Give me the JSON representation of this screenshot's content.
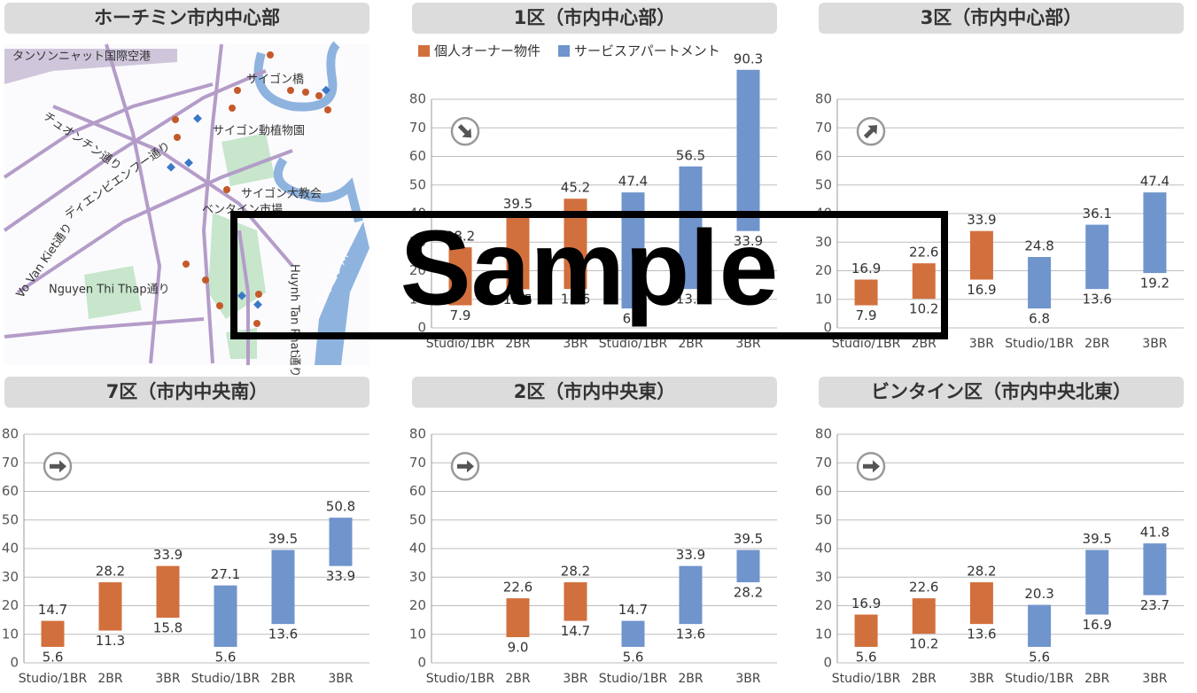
{
  "map": {
    "title": "ホーチミン市内中心部",
    "labels": [
      "タンソンニャット国際空港",
      "サイゴン橋",
      "サイゴン動植物園",
      "チュオンチン通り",
      "ディエンビエンフー通り",
      "Vo Van Kiet通り",
      "サイゴン大教会",
      "ベンタイン市場",
      "Nguyen Thi Thap通り",
      "Huynh Tan Phat通り",
      "サイゴン川"
    ]
  },
  "watermark": "Sample",
  "chart_data": [
    {
      "type": "range-bar",
      "title": "1区（市内中心部）",
      "trend": "down",
      "legend": true,
      "categories": [
        "Studio/1BR",
        "2BR",
        "3BR",
        "Studio/1BR",
        "2BR",
        "3BR"
      ],
      "ylim": [
        0,
        80
      ],
      "yticks": [
        0,
        10,
        20,
        30,
        40,
        50,
        60,
        70,
        80
      ],
      "grid": true,
      "series": [
        {
          "name": "個人オーナー物件",
          "color": "#d2703d",
          "low": [
            7.9,
            13.5,
            13.6,
            null,
            null,
            null
          ],
          "high": [
            28.2,
            39.5,
            45.2,
            null,
            null,
            null
          ],
          "low_labels": [
            "7.9",
            "13.5",
            "13.6",
            null,
            null,
            null
          ],
          "high_labels": [
            "28.2",
            "39.5",
            "45.2",
            null,
            null,
            null
          ]
        },
        {
          "name": "サービスアパートメント",
          "color": "#7094cc",
          "low": [
            null,
            null,
            null,
            6.8,
            13.6,
            33.9
          ],
          "high": [
            null,
            null,
            null,
            47.4,
            56.5,
            90.3
          ],
          "low_labels": [
            null,
            null,
            null,
            "6.8",
            "13.6",
            "33.9"
          ],
          "high_labels": [
            null,
            null,
            null,
            "47.4",
            "56.5",
            "90.3"
          ]
        }
      ]
    },
    {
      "type": "range-bar",
      "title": "3区（市内中心部）",
      "trend": "up",
      "legend": false,
      "categories": [
        "Studio/1BR",
        "2BR",
        "3BR",
        "Studio/1BR",
        "2BR",
        "3BR"
      ],
      "ylim": [
        0,
        80
      ],
      "yticks": [
        0,
        10,
        20,
        30,
        40,
        50,
        60,
        70,
        80
      ],
      "grid": true,
      "series": [
        {
          "color": "#d2703d",
          "low": [
            7.9,
            10.2,
            16.9,
            null,
            null,
            null
          ],
          "high": [
            16.9,
            22.6,
            33.9,
            null,
            null,
            null
          ],
          "low_labels": [
            "7.9",
            "10.2",
            "16.9",
            null,
            null,
            null
          ],
          "high_labels": [
            "16.9",
            "22.6",
            "33.9",
            null,
            null,
            null
          ]
        },
        {
          "color": "#7094cc",
          "low": [
            null,
            null,
            null,
            6.8,
            13.6,
            19.2
          ],
          "high": [
            null,
            null,
            null,
            24.8,
            36.1,
            47.4
          ],
          "low_labels": [
            null,
            null,
            null,
            "6.8",
            "13.6",
            "19.2"
          ],
          "high_labels": [
            null,
            null,
            null,
            "24.8",
            "36.1",
            "47.4"
          ]
        }
      ]
    },
    {
      "type": "range-bar",
      "title": "7区（市内中央南）",
      "trend": "flat",
      "legend": false,
      "categories": [
        "Studio/1BR",
        "2BR",
        "3BR",
        "Studio/1BR",
        "2BR",
        "3BR"
      ],
      "ylim": [
        0,
        80
      ],
      "yticks": [
        0,
        10,
        20,
        30,
        40,
        50,
        60,
        70,
        80
      ],
      "grid": true,
      "series": [
        {
          "color": "#d2703d",
          "low": [
            5.6,
            11.3,
            15.8,
            null,
            null,
            null
          ],
          "high": [
            14.7,
            28.2,
            33.9,
            null,
            null,
            null
          ],
          "low_labels": [
            "5.6",
            "11.3",
            "15.8",
            null,
            null,
            null
          ],
          "high_labels": [
            "14.7",
            "28.2",
            "33.9",
            null,
            null,
            null
          ]
        },
        {
          "color": "#7094cc",
          "low": [
            null,
            null,
            null,
            5.6,
            13.6,
            33.9
          ],
          "high": [
            null,
            null,
            null,
            27.1,
            39.5,
            50.8
          ],
          "low_labels": [
            null,
            null,
            null,
            "5.6",
            "13.6",
            "33.9"
          ],
          "high_labels": [
            null,
            null,
            null,
            "27.1",
            "39.5",
            "50.8"
          ]
        }
      ]
    },
    {
      "type": "range-bar",
      "title": "2区（市内中央東）",
      "trend": "flat",
      "legend": false,
      "categories": [
        "Studio/1BR",
        "2BR",
        "3BR",
        "Studio/1BR",
        "2BR",
        "3BR"
      ],
      "ylim": [
        0,
        80
      ],
      "yticks": [
        0,
        10,
        20,
        30,
        40,
        50,
        60,
        70,
        80
      ],
      "grid": true,
      "series": [
        {
          "color": "#d2703d",
          "low": [
            null,
            9.0,
            14.7,
            null,
            null,
            null
          ],
          "high": [
            null,
            22.6,
            28.2,
            null,
            null,
            null
          ],
          "low_labels": [
            null,
            "9.0",
            "14.7",
            null,
            null,
            null
          ],
          "high_labels": [
            null,
            "22.6",
            "28.2",
            null,
            null,
            null
          ]
        },
        {
          "color": "#7094cc",
          "low": [
            null,
            null,
            null,
            5.6,
            13.6,
            28.2
          ],
          "high": [
            null,
            null,
            null,
            14.7,
            33.9,
            39.5
          ],
          "low_labels": [
            null,
            null,
            null,
            "5.6",
            "13.6",
            "28.2"
          ],
          "high_labels": [
            null,
            null,
            null,
            "14.7",
            "33.9",
            "39.5"
          ]
        }
      ]
    },
    {
      "type": "range-bar",
      "title": "ビンタイン区（市内中央北東）",
      "trend": "flat",
      "legend": false,
      "categories": [
        "Studio/1BR",
        "2BR",
        "3BR",
        "Studio/1BR",
        "2BR",
        "3BR"
      ],
      "ylim": [
        0,
        80
      ],
      "yticks": [
        0,
        10,
        20,
        30,
        40,
        50,
        60,
        70,
        80
      ],
      "grid": true,
      "series": [
        {
          "color": "#d2703d",
          "low": [
            5.6,
            10.2,
            13.6,
            null,
            null,
            null
          ],
          "high": [
            16.9,
            22.6,
            28.2,
            null,
            null,
            null
          ],
          "low_labels": [
            "5.6",
            "10.2",
            "13.6",
            null,
            null,
            null
          ],
          "high_labels": [
            "16.9",
            "22.6",
            "28.2",
            null,
            null,
            null
          ]
        },
        {
          "color": "#7094cc",
          "low": [
            null,
            null,
            null,
            5.6,
            16.9,
            23.7
          ],
          "high": [
            null,
            null,
            null,
            20.3,
            39.5,
            41.8
          ],
          "low_labels": [
            null,
            null,
            null,
            "5.6",
            "16.9",
            "23.7"
          ],
          "high_labels": [
            null,
            null,
            null,
            "20.3",
            "39.5",
            "41.8"
          ]
        }
      ]
    }
  ]
}
